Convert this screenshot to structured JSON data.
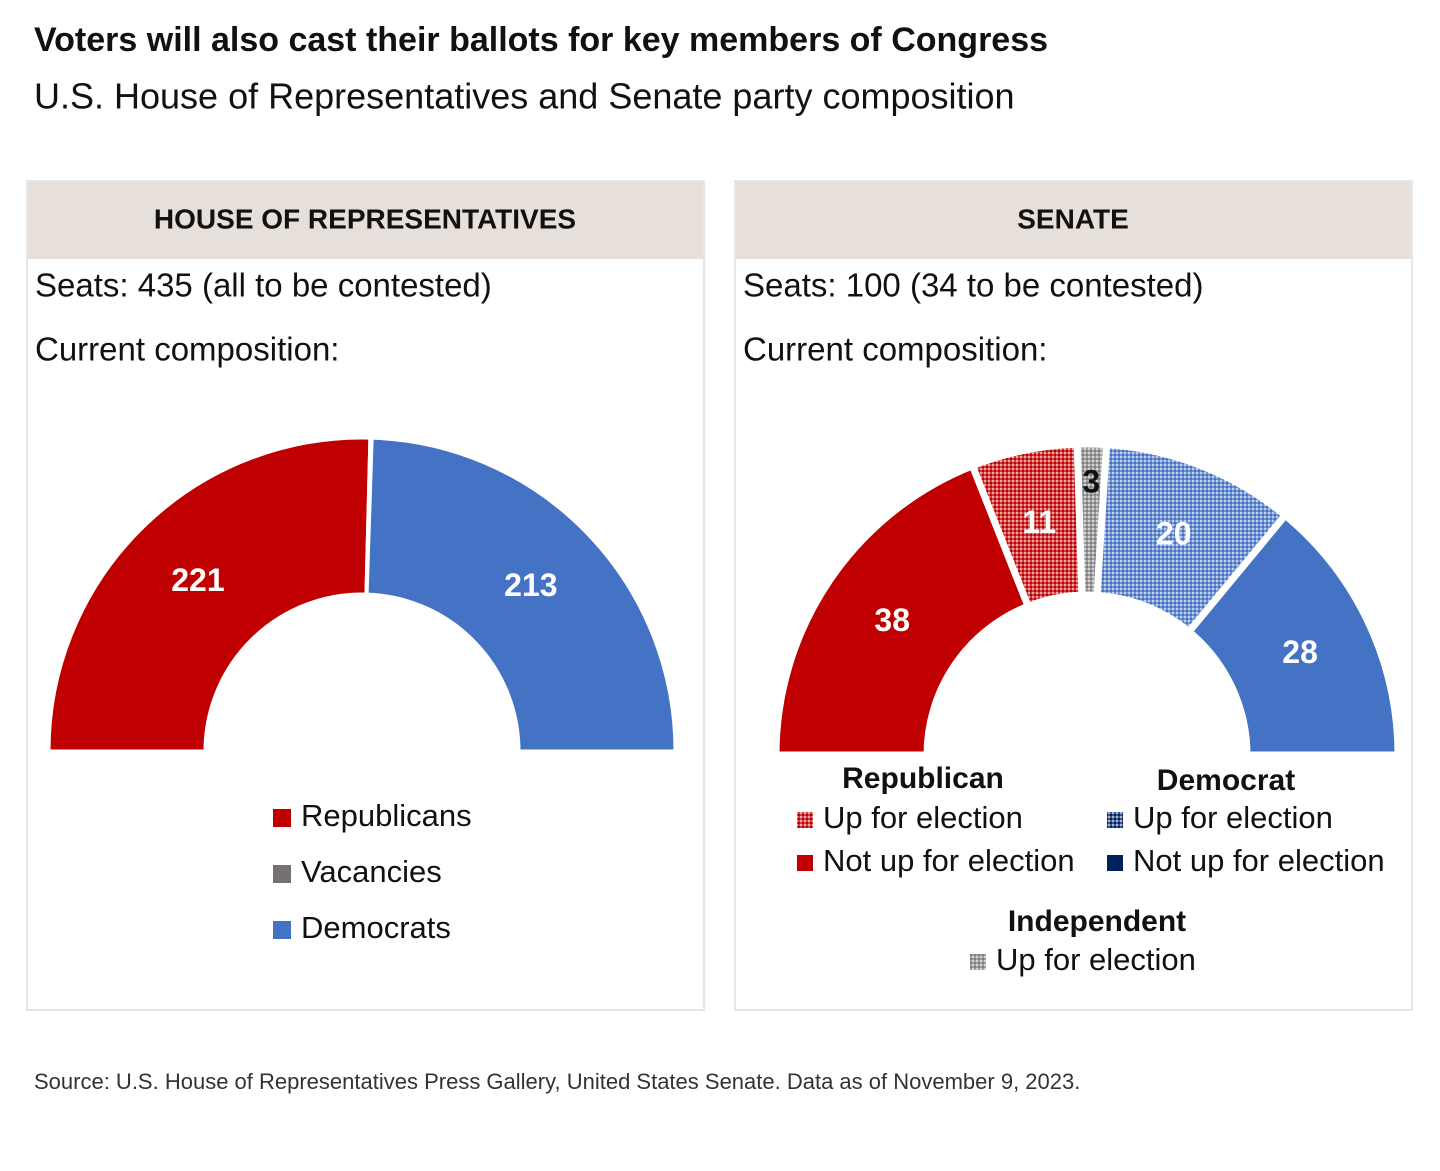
{
  "title": "Voters will also cast their ballots for key members of Congress",
  "subtitle": "U.S. House of Representatives and Senate party composition",
  "source": "Source: U.S. House of Representatives Press Gallery, United States Senate. Data as of November 9, 2023.",
  "chart_data": [
    {
      "type": "half-donut",
      "heading": "HOUSE OF REPRESENTATIVES",
      "seats": "Seats: 435 (all to be contested)",
      "composition": "Current composition:",
      "categories": [
        "Republicans",
        "Vacancies",
        "Democrats"
      ],
      "values": [
        221,
        1,
        213
      ],
      "colors": [
        "#c00000",
        "#767171",
        "#4472c4"
      ],
      "patterned": [
        false,
        false,
        false
      ],
      "legend": {
        "groups": [
          {
            "name": null,
            "items": [
              {
                "label": "Republicans",
                "color": "#c00000",
                "patterned": false
              },
              {
                "label": "Vacancies",
                "color": "#767171",
                "patterned": false
              },
              {
                "label": "Democrats",
                "color": "#4472c4",
                "patterned": false
              }
            ]
          }
        ]
      }
    },
    {
      "type": "half-donut",
      "heading": "SENATE",
      "seats": "Seats: 100 (34 to be contested)",
      "composition": "Current composition:",
      "categories": [
        null,
        null,
        null,
        null,
        null
      ],
      "values": [
        38,
        11,
        3,
        20,
        28
      ],
      "colors": [
        "#c00000",
        "#c00000",
        "#7f7f7f",
        "#4472c4",
        "#4472c4"
      ],
      "patterned": [
        false,
        true,
        true,
        true,
        false
      ],
      "legend": {
        "groups": [
          {
            "name": "Republican",
            "items": [
              {
                "label": "Up for election",
                "color": "#c00000",
                "patterned": true
              },
              {
                "label": "Not up for election",
                "color": "#c00000",
                "patterned": false
              }
            ]
          },
          {
            "name": "Democrat",
            "items": [
              {
                "label": "Up for election",
                "color": "#002060",
                "patterned": true
              },
              {
                "label": "Not up for election",
                "color": "#002060",
                "patterned": false
              }
            ]
          },
          {
            "name": "Independent",
            "items": [
              {
                "label": "Up for election",
                "color": "#7f7f7f",
                "patterned": true
              }
            ]
          }
        ]
      }
    }
  ]
}
